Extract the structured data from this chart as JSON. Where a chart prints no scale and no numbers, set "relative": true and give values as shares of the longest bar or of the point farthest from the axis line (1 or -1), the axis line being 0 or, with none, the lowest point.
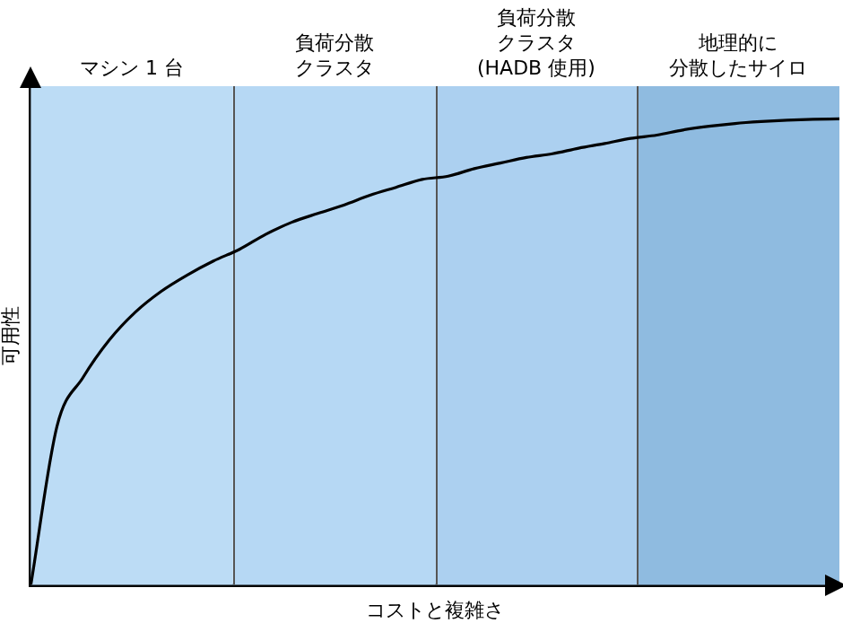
{
  "chart_data": {
    "type": "line",
    "relative": true,
    "xlabel": "コストと複雑さ",
    "ylabel": "可用性",
    "grid": false,
    "legend": false,
    "marker": "none",
    "categories": [
      null,
      null,
      null,
      null,
      null,
      null,
      null,
      null,
      null,
      null,
      null,
      null,
      null,
      null,
      null,
      null,
      null,
      null,
      null,
      null,
      null,
      null,
      null,
      null,
      null,
      null,
      null,
      null,
      null,
      null,
      null,
      null
    ],
    "series": [
      {
        "color": "#000000",
        "values": [
          0,
          0.34,
          0.445,
          0.525,
          0.585,
          0.63,
          0.665,
          0.695,
          0.72,
          0.752,
          0.778,
          0.797,
          0.815,
          0.836,
          0.853,
          0.87,
          0.877,
          0.893,
          0.905,
          0.917,
          0.925,
          0.937,
          0.947,
          0.958,
          0.965,
          0.976,
          0.984,
          0.99,
          0.994,
          0.997,
          0.999,
          1
        ]
      }
    ],
    "annotations": [
      "マシン 1 台",
      "負荷分散クラスタ",
      "負荷分散クラスタ(HADB 使用)",
      "地理的に分散したサイロ"
    ]
  }
}
